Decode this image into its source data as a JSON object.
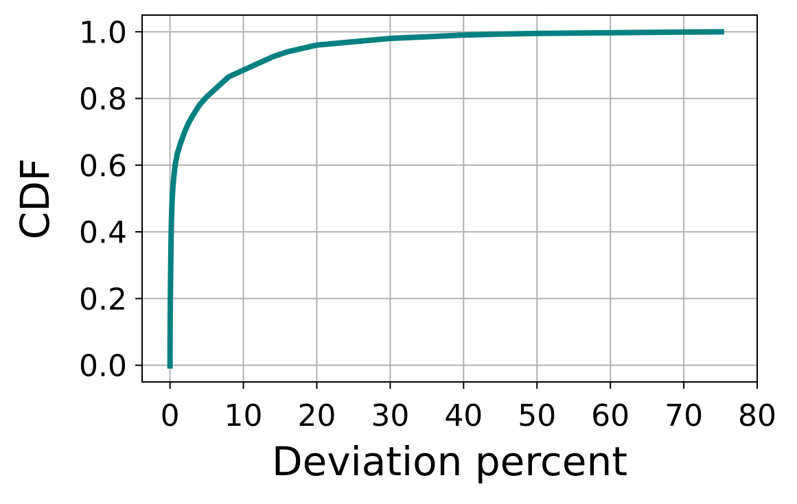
{
  "chart_data": {
    "type": "line",
    "title": "",
    "xlabel": "Deviation percent",
    "ylabel": "CDF",
    "xlim": [
      -3.8,
      80
    ],
    "ylim": [
      -0.05,
      1.05
    ],
    "xticks": [
      0,
      10,
      20,
      30,
      40,
      50,
      60,
      70,
      80
    ],
    "xtick_labels": [
      "0",
      "10",
      "20",
      "30",
      "40",
      "50",
      "60",
      "70",
      "80"
    ],
    "yticks": [
      0.0,
      0.2,
      0.4,
      0.6,
      0.8,
      1.0
    ],
    "ytick_labels": [
      "0.0",
      "0.2",
      "0.4",
      "0.6",
      "0.8",
      "1.0"
    ],
    "grid": true,
    "legend": "none",
    "series": [
      {
        "color": "#008080",
        "x": [
          0,
          0.02,
          0.05,
          0.1,
          0.15,
          0.2,
          0.3,
          0.4,
          0.5,
          0.7,
          1.0,
          1.5,
          2.0,
          2.5,
          3.0,
          4.0,
          5.0,
          6.0,
          7.0,
          8.0,
          9.0,
          10.0,
          12.0,
          14.0,
          16.0,
          18.0,
          20.0,
          25.0,
          30.0,
          35.0,
          40.0,
          45.0,
          50.0,
          60.0,
          70.0,
          75.5
        ],
        "y": [
          -0.01,
          0.1,
          0.2,
          0.3,
          0.38,
          0.44,
          0.5,
          0.535,
          0.56,
          0.6,
          0.635,
          0.67,
          0.7,
          0.725,
          0.745,
          0.78,
          0.805,
          0.825,
          0.845,
          0.865,
          0.875,
          0.885,
          0.905,
          0.925,
          0.94,
          0.95,
          0.96,
          0.97,
          0.98,
          0.985,
          0.99,
          0.993,
          0.995,
          0.997,
          0.999,
          1.0
        ]
      }
    ]
  }
}
